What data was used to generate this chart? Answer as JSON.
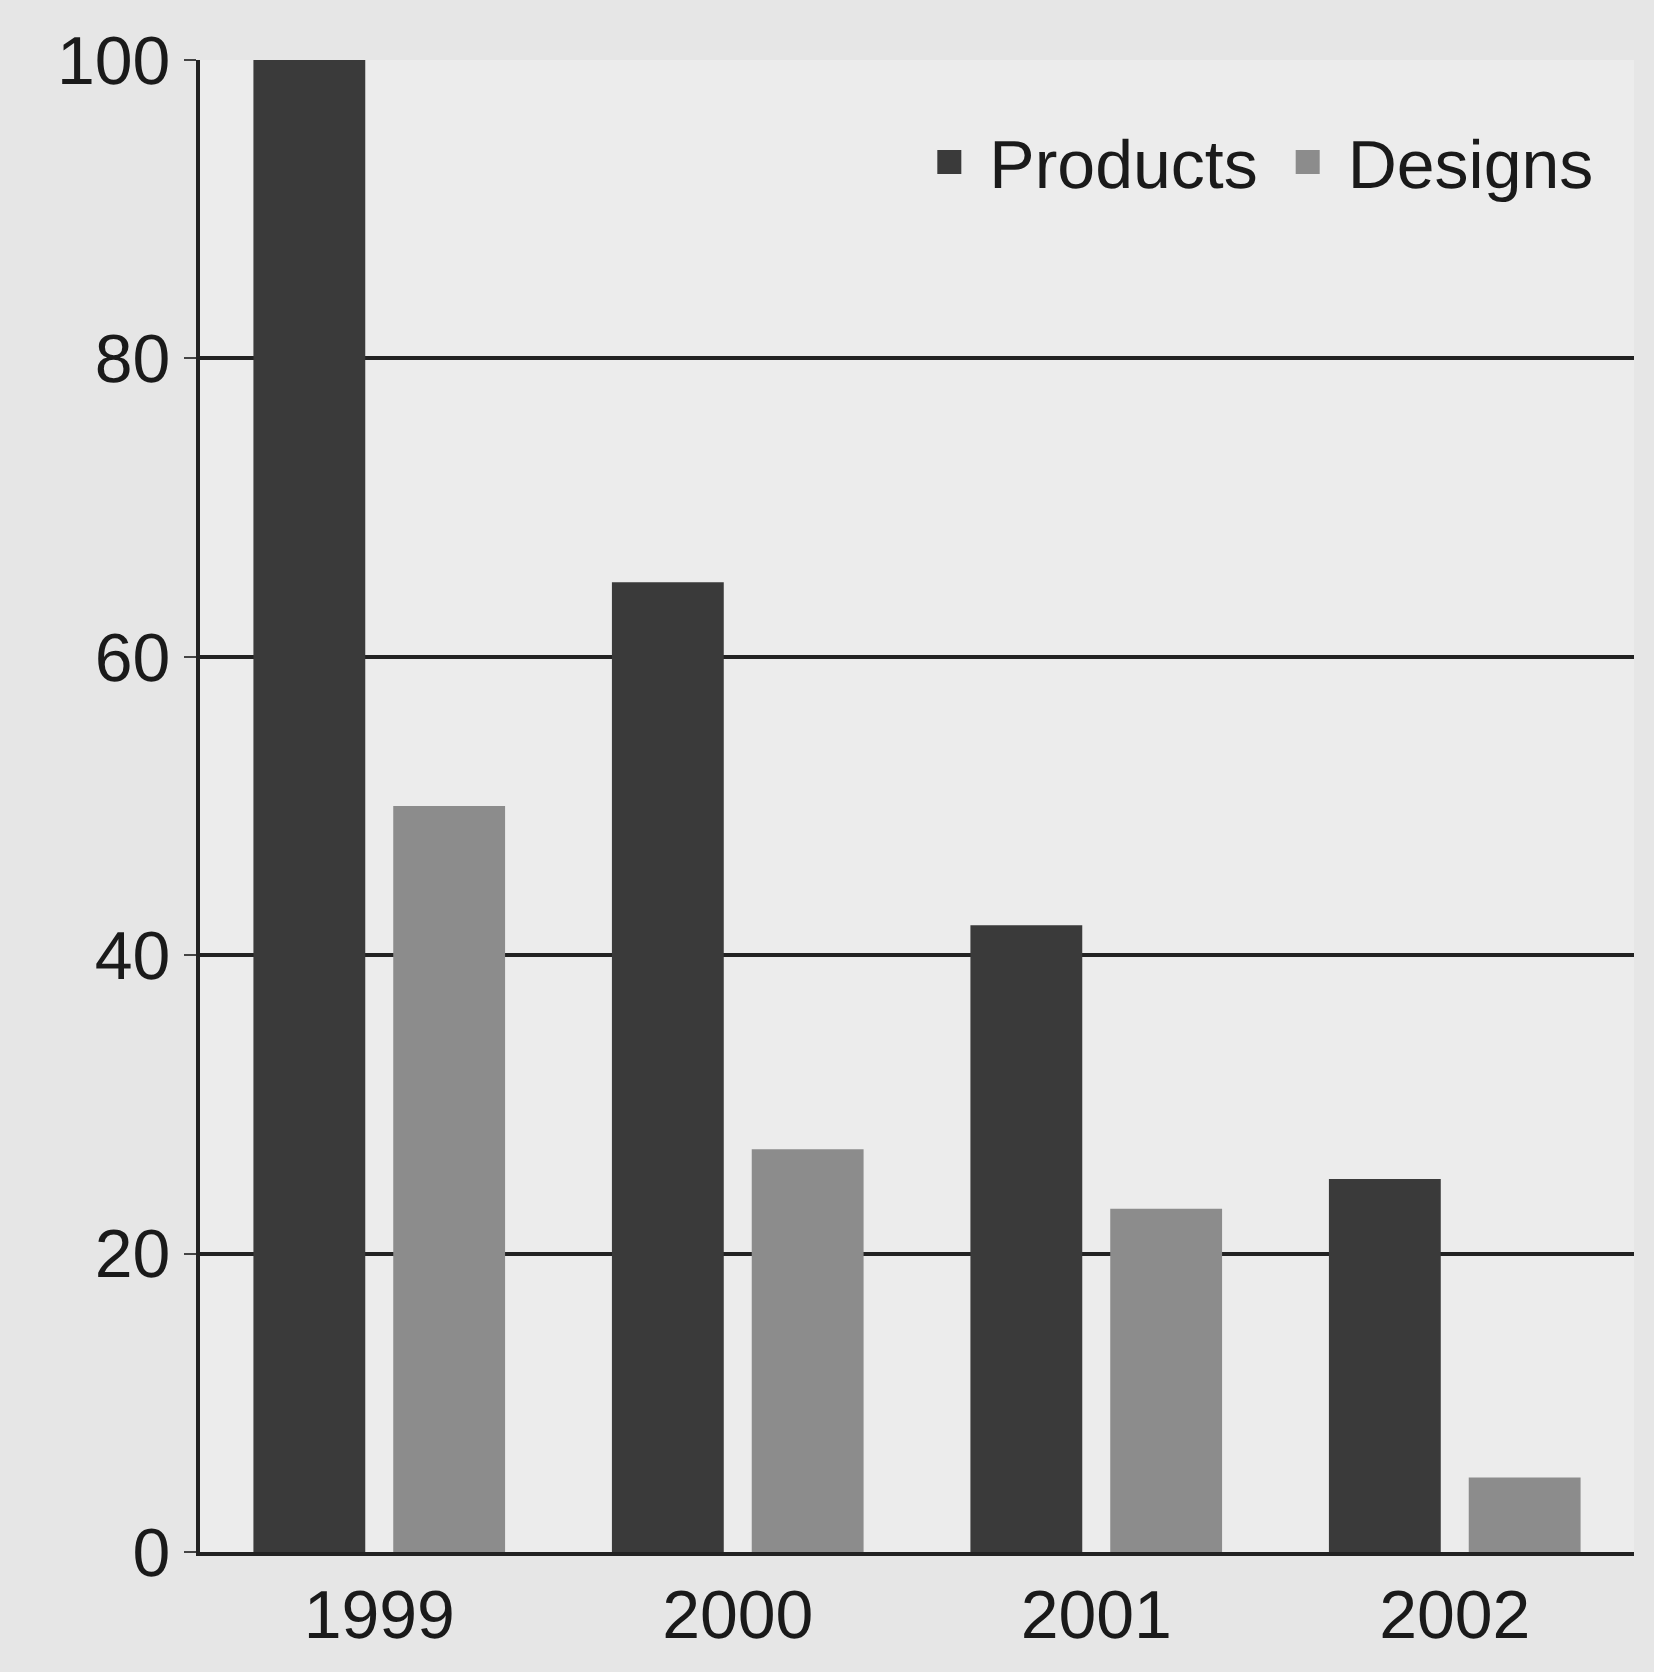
{
  "chart_data": {
    "type": "bar",
    "categories": [
      "1999",
      "2000",
      "2001",
      "2002"
    ],
    "series": [
      {
        "name": "Products",
        "color": "#3a3a3a",
        "values": [
          100,
          65,
          42,
          25
        ]
      },
      {
        "name": "Designs",
        "color": "#8c8c8c",
        "values": [
          50,
          27,
          23,
          5
        ]
      }
    ],
    "ylim": [
      0,
      100
    ],
    "yticks": [
      0,
      20,
      40,
      60,
      80,
      100
    ],
    "grid": "y",
    "legend": "top right"
  }
}
